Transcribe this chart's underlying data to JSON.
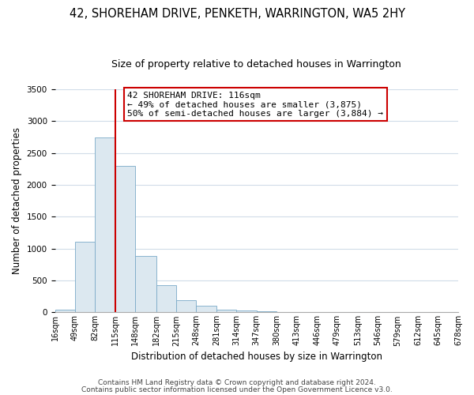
{
  "title": "42, SHOREHAM DRIVE, PENKETH, WARRINGTON, WA5 2HY",
  "subtitle": "Size of property relative to detached houses in Warrington",
  "xlabel": "Distribution of detached houses by size in Warrington",
  "ylabel": "Number of detached properties",
  "bar_color": "#dce8f0",
  "bar_edge_color": "#7aaac8",
  "grid_color": "#d0dce8",
  "background_color": "#ffffff",
  "marker_line_x": 115,
  "marker_line_color": "#cc0000",
  "bin_edges": [
    16,
    49,
    82,
    115,
    148,
    182,
    215,
    248,
    281,
    314,
    347,
    380,
    413,
    446,
    479,
    513,
    546,
    579,
    612,
    645,
    678
  ],
  "bin_heights": [
    40,
    1110,
    2740,
    2300,
    880,
    430,
    185,
    105,
    45,
    30,
    20,
    10,
    5,
    3,
    2,
    1,
    0,
    0,
    0,
    0
  ],
  "annotation_text": "42 SHOREHAM DRIVE: 116sqm\n← 49% of detached houses are smaller (3,875)\n50% of semi-detached houses are larger (3,884) →",
  "annotation_box_color": "#ffffff",
  "annotation_box_edge": "#cc0000",
  "footer1": "Contains HM Land Registry data © Crown copyright and database right 2024.",
  "footer2": "Contains public sector information licensed under the Open Government Licence v3.0.",
  "ylim": [
    0,
    3500
  ],
  "xlim_left": 16,
  "xlim_right": 678,
  "title_fontsize": 10.5,
  "subtitle_fontsize": 9,
  "tick_fontsize": 7,
  "ylabel_fontsize": 8.5,
  "xlabel_fontsize": 8.5,
  "annotation_fontsize": 8,
  "footer_fontsize": 6.5
}
